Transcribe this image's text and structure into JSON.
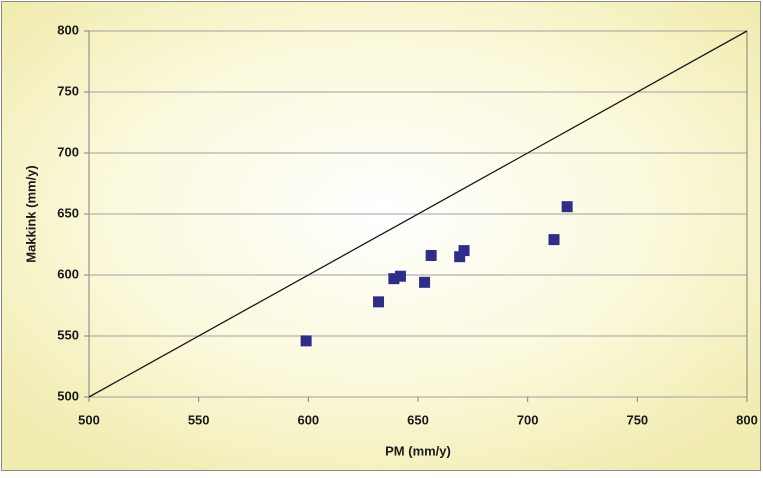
{
  "chart_data": {
    "type": "scatter",
    "x_label": "PM (mm/y)",
    "y_label": "Makkink (mm/y)",
    "x": [
      599,
      632,
      639,
      642,
      653,
      656,
      669,
      671,
      712,
      718
    ],
    "y": [
      546,
      578,
      597,
      599,
      594,
      616,
      615,
      620,
      629,
      656
    ],
    "color": "#2e2e8a",
    "reference_line": {
      "x": [
        500,
        800
      ],
      "y": [
        500,
        800
      ],
      "color": "#1a1a1a"
    },
    "xlim": [
      500,
      800
    ],
    "xticks": [
      500,
      550,
      600,
      650,
      700,
      750,
      800
    ],
    "ylim": [
      500,
      800
    ],
    "yticks": [
      500,
      550,
      600,
      650,
      700,
      750,
      800
    ],
    "grid": true
  }
}
